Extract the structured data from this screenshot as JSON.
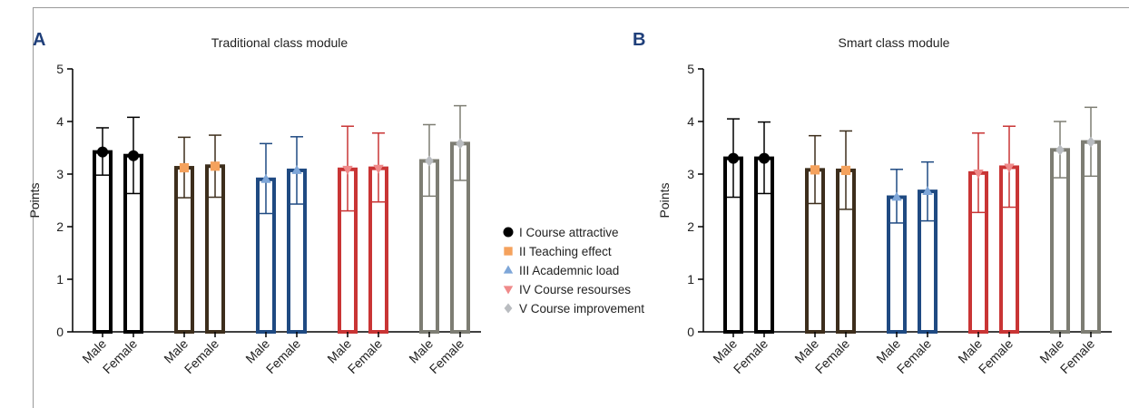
{
  "chart_data": [
    {
      "type": "bar",
      "panel_letter": "A",
      "title": "Traditional class module",
      "ylabel": "Points",
      "ylim": [
        0,
        5
      ],
      "yticks": [
        0,
        1,
        2,
        3,
        4,
        5
      ],
      "categories": [
        "Male",
        "Female"
      ],
      "grid": false,
      "series": [
        {
          "name": "I Course attractive",
          "values": [
            3.42,
            3.35
          ],
          "err_upper": [
            3.88,
            4.08
          ],
          "err_lower": [
            2.98,
            2.63
          ]
        },
        {
          "name": "II Teaching effect",
          "values": [
            3.12,
            3.15
          ],
          "err_upper": [
            3.7,
            3.74
          ],
          "err_lower": [
            2.55,
            2.56
          ]
        },
        {
          "name": "III Academnic load",
          "values": [
            2.9,
            3.07
          ],
          "err_upper": [
            3.58,
            3.71
          ],
          "err_lower": [
            2.25,
            2.43
          ]
        },
        {
          "name": "IV Course resourses",
          "values": [
            3.09,
            3.11
          ],
          "err_upper": [
            3.91,
            3.78
          ],
          "err_lower": [
            2.3,
            2.47
          ]
        },
        {
          "name": "V Course improvement",
          "values": [
            3.25,
            3.58
          ],
          "err_upper": [
            3.94,
            4.3
          ],
          "err_lower": [
            2.58,
            2.88
          ]
        }
      ]
    },
    {
      "type": "bar",
      "panel_letter": "B",
      "title": "Smart class module",
      "ylabel": "Points",
      "ylim": [
        0,
        5
      ],
      "yticks": [
        0,
        1,
        2,
        3,
        4,
        5
      ],
      "categories": [
        "Male",
        "Female"
      ],
      "grid": false,
      "series": [
        {
          "name": "I Course attractive",
          "values": [
            3.3,
            3.3
          ],
          "err_upper": [
            4.05,
            3.99
          ],
          "err_lower": [
            2.56,
            2.63
          ]
        },
        {
          "name": "II Teaching effect",
          "values": [
            3.08,
            3.07
          ],
          "err_upper": [
            3.73,
            3.82
          ],
          "err_lower": [
            2.44,
            2.33
          ]
        },
        {
          "name": "III Academnic load",
          "values": [
            2.56,
            2.67
          ],
          "err_upper": [
            3.09,
            3.23
          ],
          "err_lower": [
            2.07,
            2.11
          ]
        },
        {
          "name": "IV Course resourses",
          "values": [
            3.02,
            3.13
          ],
          "err_upper": [
            3.78,
            3.91
          ],
          "err_lower": [
            2.27,
            2.37
          ]
        },
        {
          "name": "V Course improvement",
          "values": [
            3.46,
            3.61
          ],
          "err_upper": [
            4.0,
            4.27
          ],
          "err_lower": [
            2.93,
            2.96
          ]
        }
      ]
    }
  ],
  "legend": {
    "placement": "center, between panels",
    "entries": [
      {
        "label": "I Course attractive",
        "marker": "circle",
        "color": "#000000"
      },
      {
        "label": "II Teaching effect",
        "marker": "square",
        "color": "#f5a25d"
      },
      {
        "label": "III Academnic load",
        "marker": "triangle-up",
        "color": "#7ea6d8"
      },
      {
        "label": "IV Course resourses",
        "marker": "triangle-down",
        "color": "#ef8a8a"
      },
      {
        "label": "V Course improvement",
        "marker": "diamond",
        "color": "#b9bcc0"
      }
    ]
  },
  "series_colors": {
    "bar_outline": [
      "#000000",
      "#3d2e1c",
      "#1f4a82",
      "#c93535",
      "#7d7d73"
    ],
    "marker_fill": [
      "#000000",
      "#f5a25d",
      "#7ea6d8",
      "#ef8a8a",
      "#b9bcc0"
    ],
    "errorbar": [
      "#000000",
      "#3d2e1c",
      "#1f4a82",
      "#c93535",
      "#7d7d73"
    ]
  }
}
